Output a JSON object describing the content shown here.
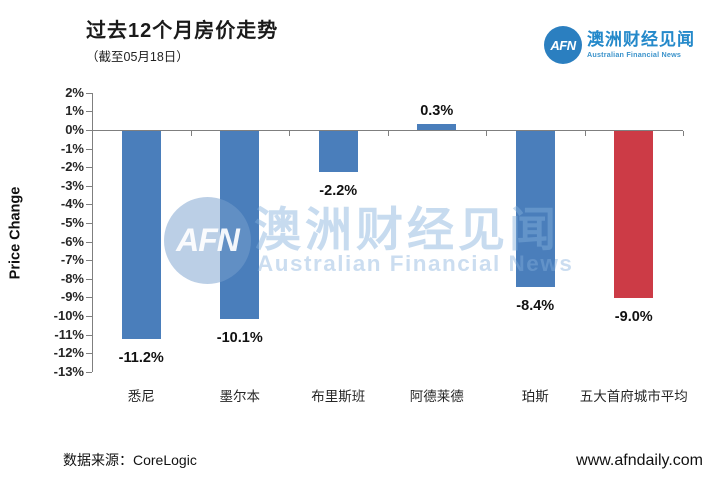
{
  "header": {
    "title": "过去12个月房价走势",
    "subtitle": "（截至05月18日）"
  },
  "logo": {
    "acronym": "AFN",
    "name_cn": "澳洲财经见闻",
    "name_en": "Australian Financial News"
  },
  "watermark": {
    "acronym": "AFN",
    "name_cn": "澳洲财经见闻",
    "name_en": "Australian Financial News"
  },
  "footer": {
    "source": "数据来源：CoreLogic",
    "website": "www.afndaily.com"
  },
  "colors": {
    "bar_blue": "#4a7ebb",
    "bar_red": "#cc3b46",
    "axis_gray": "#7f7f7f",
    "logo_blue": "#2b7fc0",
    "watermark_blue": "#bcd4ec"
  },
  "chart_data": {
    "type": "bar",
    "title": "过去12个月房价走势",
    "subtitle": "（截至05月18日）",
    "categories": [
      "悉尼",
      "墨尔本",
      "布里斯班",
      "阿德莱德",
      "珀斯",
      "五大首府城市平均"
    ],
    "values": [
      -11.2,
      -10.1,
      -2.2,
      0.3,
      -8.4,
      -9.0
    ],
    "data_labels": [
      "-11.2%",
      "-10.1%",
      "-2.2%",
      "0.3%",
      "-8.4%",
      "-9.0%"
    ],
    "bar_colors": [
      "#4a7ebb",
      "#4a7ebb",
      "#4a7ebb",
      "#4a7ebb",
      "#4a7ebb",
      "#cc3b46"
    ],
    "xlabel": "",
    "ylabel": "Price Change",
    "ylim": [
      -13,
      2
    ],
    "ytick_step": 1,
    "yticks": [
      "2%",
      "1%",
      "0%",
      "-1%",
      "-2%",
      "-3%",
      "-4%",
      "-5%",
      "-6%",
      "-7%",
      "-8%",
      "-9%",
      "-10%",
      "-11%",
      "-12%",
      "-13%"
    ],
    "grid": false,
    "legend": false
  }
}
